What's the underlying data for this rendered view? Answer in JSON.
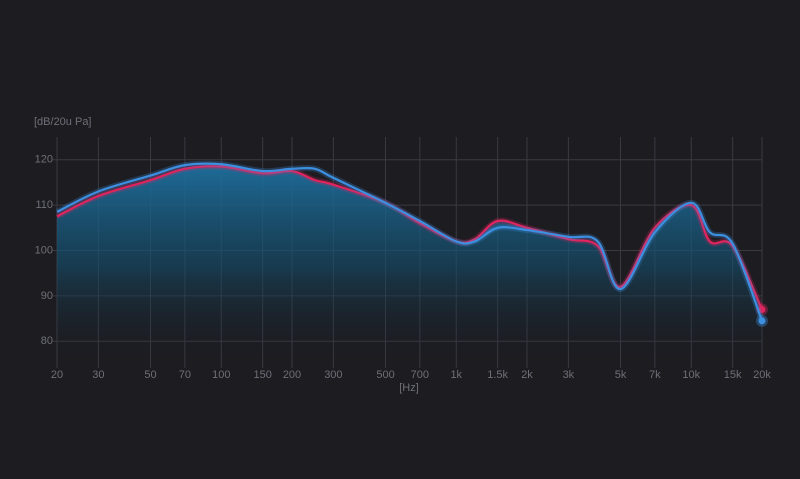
{
  "chart_data": {
    "type": "line",
    "y_label": "[dB/20u Pa]",
    "x_label": "[Hz]",
    "log_x": true,
    "grid": true,
    "xlim": [
      20,
      20000
    ],
    "ylim": [
      75,
      125
    ],
    "yticks": [
      80,
      90,
      100,
      110,
      120
    ],
    "xticks": [
      20,
      30,
      50,
      70,
      100,
      150,
      200,
      300,
      500,
      700,
      {
        "value": 1000,
        "label": "1k"
      },
      {
        "value": 1500,
        "label": "1.5k"
      },
      {
        "value": 2000,
        "label": "2k"
      },
      {
        "value": 3000,
        "label": "3k"
      },
      {
        "value": 5000,
        "label": "5k"
      },
      {
        "value": 7000,
        "label": "7k"
      },
      {
        "value": 10000,
        "label": "10k"
      },
      {
        "value": 15000,
        "label": "15k"
      },
      {
        "value": 20000,
        "label": "20k"
      }
    ],
    "x": [
      20,
      30,
      50,
      70,
      100,
      150,
      200,
      250,
      300,
      500,
      700,
      1000,
      1200,
      1500,
      2000,
      3000,
      4000,
      5000,
      7000,
      10000,
      12000,
      15000,
      20000
    ],
    "series": [
      {
        "color": "#e0245e",
        "values": [
          107.5,
          112,
          115.5,
          118,
          118.5,
          117,
          117.5,
          115.5,
          114.5,
          110.5,
          106,
          102,
          102.5,
          106.5,
          105,
          102.5,
          101,
          92,
          105,
          110,
          102,
          101,
          87
        ]
      },
      {
        "color": "#3d8fe0",
        "values": [
          108.5,
          113,
          116.5,
          118.8,
          119,
          117.5,
          118,
          118,
          116,
          110.5,
          106.5,
          102,
          102,
          105,
          104.5,
          103,
          102,
          91.5,
          104,
          110.5,
          104,
          101.5,
          84.5
        ]
      }
    ]
  }
}
